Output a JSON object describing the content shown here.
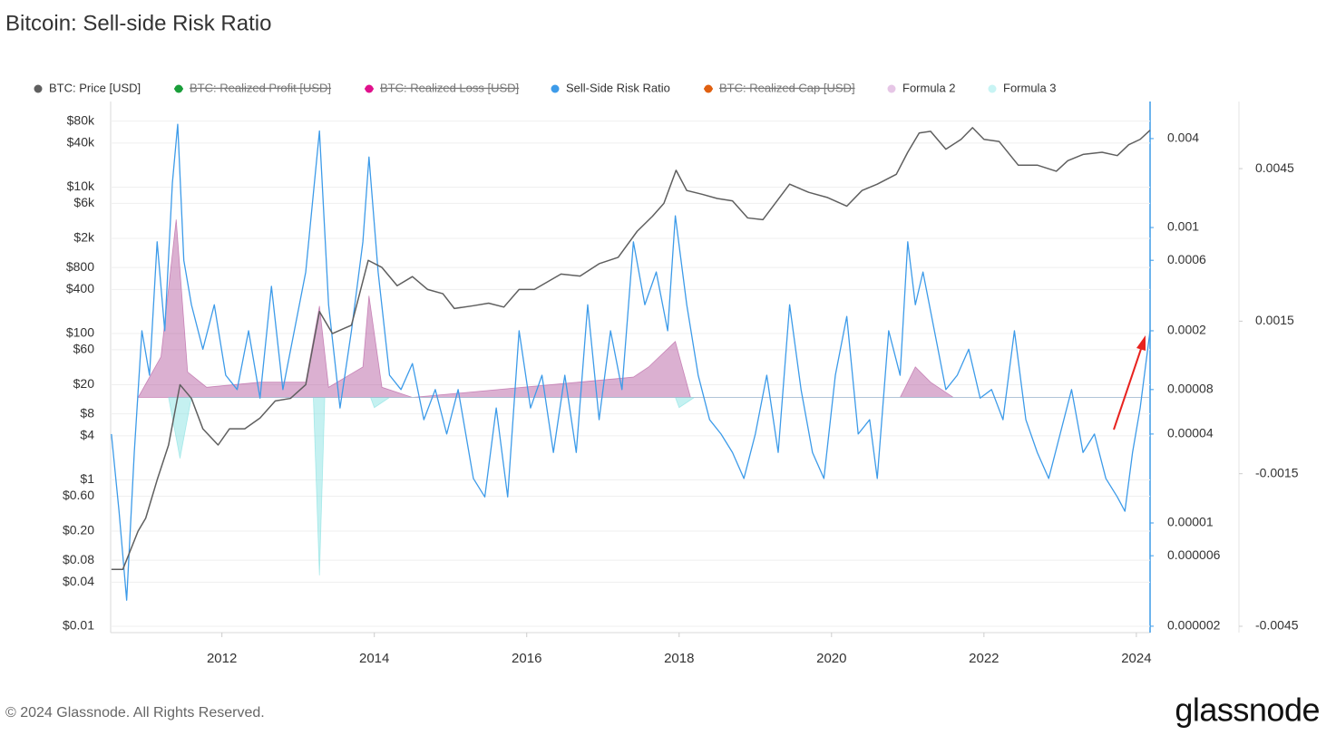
{
  "chart_data": {
    "type": "line",
    "title": "Bitcoin: Sell-side Risk Ratio",
    "source": "© 2024 Glassnode. All Rights Reserved.",
    "logo": "glassnode",
    "xlim": [
      2010.54,
      2024.18
    ],
    "xticks": [
      2012,
      2014,
      2016,
      2018,
      2020,
      2022,
      2024
    ],
    "ylim": [
      0.0082,
      148000
    ],
    "log_y": true,
    "yticks": [
      {
        "value": 80000,
        "label": "$80k"
      },
      {
        "value": 40000,
        "label": "$40k"
      },
      {
        "value": 10000,
        "label": "$10k"
      },
      {
        "value": 6000,
        "label": "$6k"
      },
      {
        "value": 2000,
        "label": "$2k"
      },
      {
        "value": 800,
        "label": "$800"
      },
      {
        "value": 400,
        "label": "$400"
      },
      {
        "value": 100,
        "label": "$100"
      },
      {
        "value": 60,
        "label": "$60"
      },
      {
        "value": 20,
        "label": "$20"
      },
      {
        "value": 8,
        "label": "$8"
      },
      {
        "value": 4,
        "label": "$4"
      },
      {
        "value": 1,
        "label": "$1"
      },
      {
        "value": 0.6,
        "label": "$0.60"
      },
      {
        "value": 0.2,
        "label": "$0.20"
      },
      {
        "value": 0.08,
        "label": "$0.08"
      },
      {
        "value": 0.04,
        "label": "$0.04"
      },
      {
        "value": 0.01,
        "label": "$0.01"
      }
    ],
    "y2lim": [
      1.81e-06,
      0.00713
    ],
    "log_y2": true,
    "y2ticks": [
      0.004,
      0.001,
      0.0006,
      0.0002,
      8e-05,
      4e-05,
      1e-05,
      6e-06,
      2e-06
    ],
    "y3lim": [
      -0.004625,
      0.00582
    ],
    "y3ticks": [
      0.0045,
      0.0015,
      -0.0015,
      -0.0045
    ],
    "grid": true,
    "series": [
      {
        "name": "BTC: Price [USD]",
        "color": "#5f5f5f",
        "axis": "y",
        "visible": true,
        "x": [
          2010.55,
          2010.7,
          2010.9,
          2011.0,
          2011.15,
          2011.3,
          2011.45,
          2011.6,
          2011.75,
          2011.95,
          2012.1,
          2012.3,
          2012.5,
          2012.7,
          2012.9,
          2013.1,
          2013.28,
          2013.45,
          2013.7,
          2013.92,
          2014.1,
          2014.3,
          2014.5,
          2014.7,
          2014.9,
          2015.05,
          2015.3,
          2015.5,
          2015.7,
          2015.9,
          2016.1,
          2016.45,
          2016.7,
          2016.95,
          2017.2,
          2017.45,
          2017.65,
          2017.8,
          2017.96,
          2018.1,
          2018.3,
          2018.5,
          2018.7,
          2018.9,
          2019.1,
          2019.45,
          2019.7,
          2019.95,
          2020.2,
          2020.4,
          2020.6,
          2020.85,
          2021.0,
          2021.15,
          2021.3,
          2021.5,
          2021.7,
          2021.85,
          2022.0,
          2022.2,
          2022.45,
          2022.7,
          2022.95,
          2023.1,
          2023.3,
          2023.55,
          2023.75,
          2023.9,
          2024.05,
          2024.18
        ],
        "values": [
          0.06,
          0.06,
          0.2,
          0.3,
          1,
          3,
          20,
          13,
          5,
          3,
          5,
          5,
          7,
          12,
          13,
          20,
          200,
          100,
          130,
          1000,
          800,
          450,
          600,
          400,
          350,
          220,
          240,
          260,
          230,
          400,
          400,
          650,
          610,
          900,
          1100,
          2500,
          4000,
          6000,
          17000,
          9000,
          8000,
          7000,
          6500,
          3800,
          3600,
          11000,
          8500,
          7200,
          5500,
          9000,
          11000,
          15000,
          30000,
          55000,
          58000,
          33000,
          45000,
          65000,
          45000,
          42000,
          20000,
          20000,
          16500,
          23000,
          28000,
          30000,
          27000,
          38000,
          45000,
          60000
        ]
      },
      {
        "name": "BTC: Realized Profit [USD]",
        "color": "#1a9e3a",
        "visible": false
      },
      {
        "name": "BTC: Realized Loss [USD]",
        "color": "#e0118c",
        "visible": false
      },
      {
        "name": "Sell-Side Risk Ratio",
        "color": "#3d9be9",
        "axis": "y2",
        "visible": true,
        "x": [
          2010.55,
          2010.65,
          2010.75,
          2010.85,
          2010.95,
          2011.05,
          2011.15,
          2011.25,
          2011.35,
          2011.42,
          2011.5,
          2011.6,
          2011.75,
          2011.9,
          2012.05,
          2012.2,
          2012.35,
          2012.5,
          2012.65,
          2012.8,
          2012.95,
          2013.1,
          2013.28,
          2013.4,
          2013.55,
          2013.7,
          2013.85,
          2013.93,
          2014.05,
          2014.2,
          2014.35,
          2014.5,
          2014.65,
          2014.8,
          2014.95,
          2015.1,
          2015.3,
          2015.45,
          2015.6,
          2015.75,
          2015.9,
          2016.05,
          2016.2,
          2016.35,
          2016.5,
          2016.65,
          2016.8,
          2016.95,
          2017.1,
          2017.25,
          2017.4,
          2017.55,
          2017.7,
          2017.85,
          2017.95,
          2018.1,
          2018.25,
          2018.4,
          2018.55,
          2018.7,
          2018.85,
          2019.0,
          2019.15,
          2019.3,
          2019.45,
          2019.6,
          2019.75,
          2019.9,
          2020.05,
          2020.2,
          2020.35,
          2020.5,
          2020.6,
          2020.75,
          2020.9,
          2021.0,
          2021.1,
          2021.2,
          2021.35,
          2021.5,
          2021.65,
          2021.8,
          2021.95,
          2022.1,
          2022.25,
          2022.4,
          2022.55,
          2022.7,
          2022.85,
          2023.0,
          2023.15,
          2023.3,
          2023.45,
          2023.6,
          2023.75,
          2023.85,
          2023.95,
          2024.05,
          2024.18
        ],
        "values": [
          4e-05,
          1.2e-05,
          3e-06,
          3e-05,
          0.0002,
          0.0001,
          0.0008,
          0.0002,
          0.002,
          0.005,
          0.0006,
          0.0003,
          0.00015,
          0.0003,
          0.0001,
          8e-05,
          0.0002,
          7e-05,
          0.0004,
          8e-05,
          0.0002,
          0.0005,
          0.0045,
          0.0003,
          6e-05,
          0.0002,
          0.0008,
          0.003,
          0.0005,
          0.0001,
          8e-05,
          0.00012,
          5e-05,
          8e-05,
          4e-05,
          8e-05,
          2e-05,
          1.5e-05,
          6e-05,
          1.5e-05,
          0.0002,
          6e-05,
          0.0001,
          3e-05,
          0.0001,
          3e-05,
          0.0003,
          5e-05,
          0.0002,
          8e-05,
          0.0008,
          0.0003,
          0.0005,
          0.0002,
          0.0012,
          0.0003,
          0.0001,
          5e-05,
          4e-05,
          3e-05,
          2e-05,
          4e-05,
          0.0001,
          3e-05,
          0.0003,
          8e-05,
          3e-05,
          2e-05,
          0.0001,
          0.00025,
          4e-05,
          5e-05,
          2e-05,
          0.0002,
          0.0001,
          0.0008,
          0.0003,
          0.0005,
          0.0002,
          8e-05,
          0.0001,
          0.00015,
          7e-05,
          8e-05,
          5e-05,
          0.0002,
          5e-05,
          3e-05,
          2e-05,
          4e-05,
          8e-05,
          3e-05,
          4e-05,
          2e-05,
          1.5e-05,
          1.2e-05,
          3e-05,
          6e-05,
          0.0002
        ]
      },
      {
        "name": "BTC: Realized Cap [USD]",
        "color": "#e06010",
        "visible": false
      },
      {
        "name": "Formula 2",
        "color": "#e6c6e6",
        "fill": "#b0509a",
        "axis": "y3",
        "visible": true,
        "x": [
          2010.9,
          2011.2,
          2011.4,
          2011.55,
          2011.8,
          2012.5,
          2013.1,
          2013.28,
          2013.4,
          2013.85,
          2013.93,
          2014.1,
          2014.5,
          2017.4,
          2017.6,
          2017.95,
          2018.15,
          2020.9,
          2021.1,
          2021.3,
          2021.6,
          2024.18
        ],
        "values": [
          0,
          0.0008,
          0.0035,
          0.0005,
          0.0002,
          0.0003,
          0.0003,
          0.0018,
          0.0002,
          0.0006,
          0.002,
          0.0002,
          0,
          0.0004,
          0.0006,
          0.0011,
          0,
          0,
          0.0006,
          0.0003,
          0,
          0
        ]
      },
      {
        "name": "Formula 3",
        "color": "#c8f4f4",
        "fill": "#7fe0e0",
        "axis": "y3",
        "visible": true,
        "x": [
          2011.3,
          2011.45,
          2011.6,
          2013.2,
          2013.28,
          2013.35,
          2013.95,
          2014.0,
          2014.2,
          2017.95,
          2018.0,
          2018.2,
          2024.18
        ],
        "values": [
          0,
          -0.0012,
          0,
          0,
          -0.0035,
          0,
          0,
          -0.0002,
          0,
          0,
          -0.0002,
          0,
          0
        ]
      }
    ]
  }
}
